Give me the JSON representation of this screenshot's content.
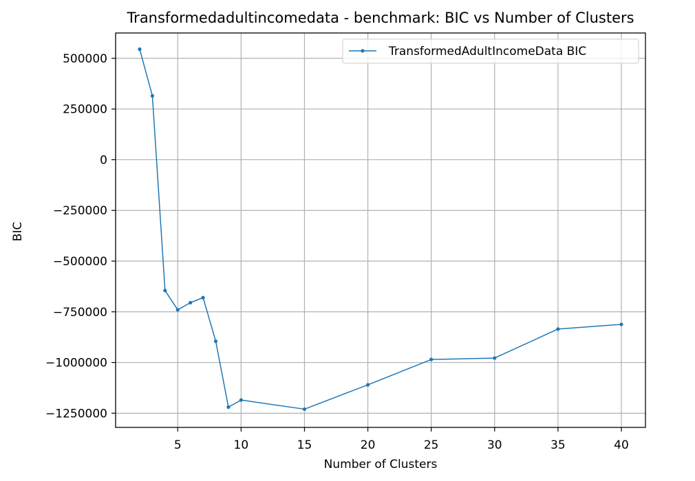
{
  "chart_data": {
    "type": "line",
    "title": "Transformedadultincomedata - benchmark: BIC vs Number of Clusters",
    "xlabel": "Number of Clusters",
    "ylabel": "BIC",
    "xlim": [
      0.1,
      41.9
    ],
    "ylim": [
      -1320000,
      625000
    ],
    "xticks": [
      5,
      10,
      15,
      20,
      25,
      30,
      35,
      40
    ],
    "yticks": [
      500000,
      250000,
      0,
      -250000,
      -500000,
      -750000,
      -1000000,
      -1250000
    ],
    "xtick_labels": [
      "5",
      "10",
      "15",
      "20",
      "25",
      "30",
      "35",
      "40"
    ],
    "ytick_labels": [
      "500000",
      "250000",
      "0",
      "−250000",
      "−500000",
      "−750000",
      "−1000000",
      "−1250000"
    ],
    "grid": true,
    "legend_position": "top-right",
    "colors": {
      "series": "#1f77b4",
      "grid": "#b0b0b0",
      "axes": "#000000"
    },
    "x": [
      2,
      3,
      4,
      5,
      6,
      7,
      8,
      9,
      10,
      15,
      20,
      25,
      30,
      35,
      40
    ],
    "series": [
      {
        "name": "TransformedAdultIncomeData BIC",
        "values": [
          545000,
          315000,
          -645000,
          -740000,
          -705000,
          -680000,
          -895000,
          -1220000,
          -1185000,
          -1230000,
          -1110000,
          -985000,
          -978000,
          -835000,
          -812000
        ]
      }
    ]
  }
}
